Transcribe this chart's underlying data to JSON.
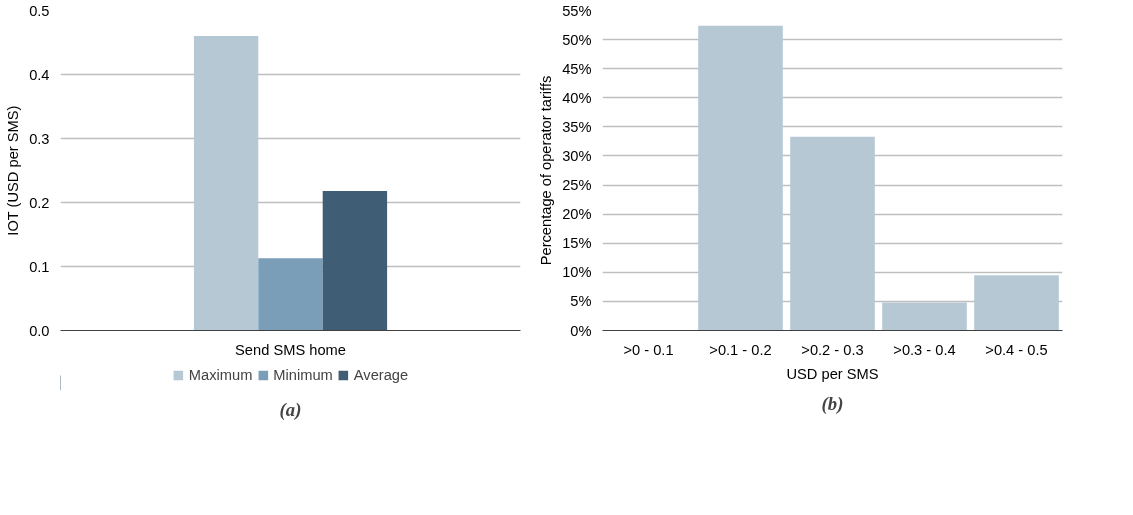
{
  "chart_data": [
    {
      "type": "bar",
      "ylabel": "IOT (USD per SMS)",
      "categories": [
        "Send SMS home"
      ],
      "series": [
        {
          "name": "Maximum",
          "color": "#b7c8d5",
          "values": [
            0.46
          ]
        },
        {
          "name": "Minimum",
          "color": "#7a9eb8",
          "values": [
            0.113
          ]
        },
        {
          "name": "Average",
          "color": "#405d76",
          "values": [
            0.218
          ]
        }
      ],
      "ylim": [
        0,
        0.5
      ],
      "yticks": [
        {
          "value": 0,
          "label": "0.0"
        },
        0.1,
        0.2,
        0.3,
        0.4,
        0.5
      ],
      "grid": "y",
      "legend": "bottom",
      "annotations": [
        "(a)"
      ]
    },
    {
      "type": "bar",
      "ylabel": "Percentage of operator tariffs",
      "xlabel": "USD per SMS",
      "categories": [
        ">0 - 0.1",
        ">0.1 - 0.2",
        ">0.2 - 0.3",
        ">0.3 - 0.4",
        ">0.4 - 0.5"
      ],
      "values": [
        0,
        52.4,
        33.3,
        4.8,
        9.5
      ],
      "color": "#b7c8d5",
      "ylim": [
        0,
        55
      ],
      "yticks": [
        {
          "value": 0,
          "label": "0%"
        },
        {
          "value": 5,
          "label": "5%"
        },
        {
          "value": 10,
          "label": "10%"
        },
        {
          "value": 15,
          "label": "15%"
        },
        {
          "value": 20,
          "label": "20%"
        },
        {
          "value": 25,
          "label": "25%"
        },
        {
          "value": 30,
          "label": "30%"
        },
        {
          "value": 35,
          "label": "35%"
        },
        {
          "value": 40,
          "label": "40%"
        },
        {
          "value": 45,
          "label": "45%"
        },
        {
          "value": 50,
          "label": "50%"
        },
        {
          "value": 55,
          "label": "55%"
        }
      ],
      "grid": "y",
      "annotations": [
        "(b)"
      ]
    }
  ]
}
